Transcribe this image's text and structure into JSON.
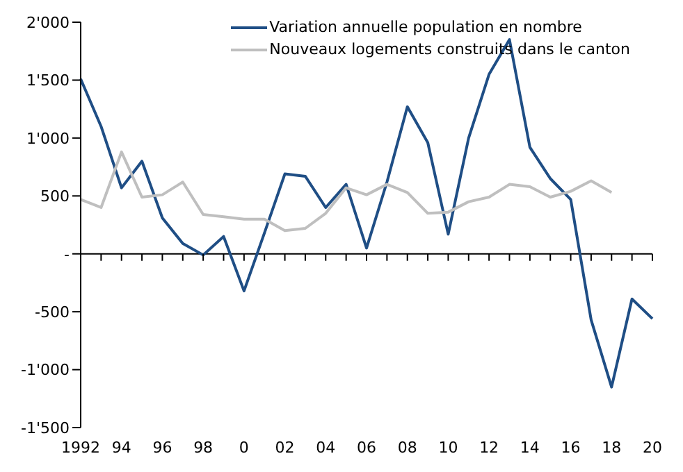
{
  "chart_data": {
    "type": "line",
    "categories": [
      "1992",
      null,
      "94",
      null,
      "96",
      null,
      "98",
      null,
      "0",
      null,
      "02",
      null,
      "04",
      null,
      "06",
      null,
      "08",
      null,
      "10",
      null,
      "12",
      null,
      "14",
      null,
      "16",
      null,
      "18",
      null,
      "20"
    ],
    "series": [
      {
        "name": "Variation annuelle population en nombre",
        "color": "#1f4e85",
        "values": [
          1510,
          1100,
          570,
          800,
          310,
          90,
          -10,
          150,
          -320,
          180,
          690,
          670,
          400,
          600,
          50,
          620,
          1270,
          960,
          170,
          1000,
          1550,
          1850,
          920,
          650,
          470,
          -570,
          -1150,
          -390,
          -560
        ]
      },
      {
        "name": "Nouveaux logements construits dans le canton",
        "color": "#bfbfbf",
        "values": [
          470,
          400,
          880,
          490,
          510,
          620,
          340,
          320,
          300,
          300,
          200,
          220,
          350,
          570,
          510,
          600,
          530,
          350,
          360,
          450,
          490,
          600,
          580,
          490,
          540,
          630,
          530,
          null,
          null
        ]
      }
    ],
    "ylim": [
      -1500,
      2000
    ],
    "yticks": [
      {
        "value": -1500,
        "label": "-1'500"
      },
      {
        "value": -1000,
        "label": "-1'000"
      },
      -500,
      {
        "value": 0,
        "label": "-"
      },
      500,
      {
        "value": 1000,
        "label": "1'000"
      },
      {
        "value": 1500,
        "label": "1'500"
      },
      {
        "value": 2000,
        "label": "2'000"
      }
    ],
    "ref_lines": [
      {
        "axis": "y",
        "value": 0,
        "color": "#000000",
        "line_style": "solid"
      }
    ],
    "legend": "top right",
    "marker": "none",
    "line_style": "solid"
  }
}
